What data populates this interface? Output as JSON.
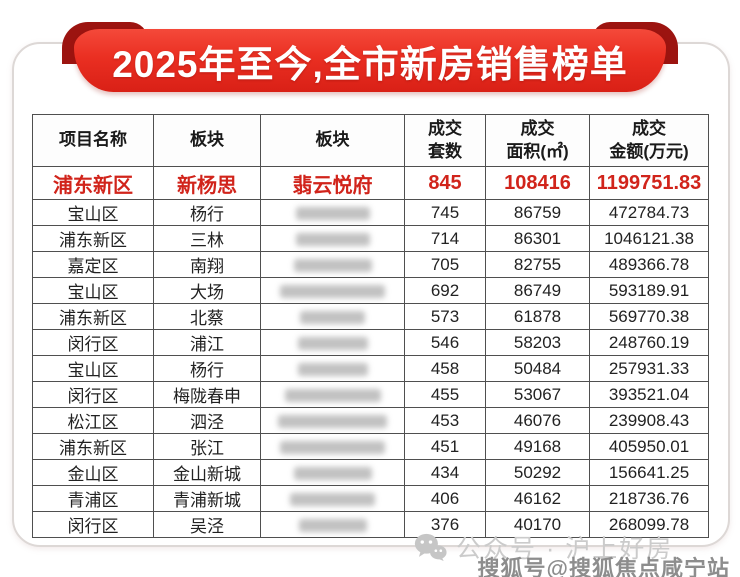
{
  "banner": {
    "title": "2025年至今,全市新房销售榜单"
  },
  "colors": {
    "banner_red": "#ea2f22",
    "banner_fold_dark_red": "#9c1410",
    "highlight_red": "#d1241b",
    "table_border": "#4f4f4f",
    "watermark_light_gray": "#cbcbcb",
    "watermark_gray": "#8d8d8d"
  },
  "table": {
    "columns": [
      {
        "line1": "项目名称",
        "line2": ""
      },
      {
        "line1": "板块",
        "line2": ""
      },
      {
        "line1": "板块",
        "line2": ""
      },
      {
        "line1": "成交",
        "line2": "套数"
      },
      {
        "line1": "成交",
        "line2": "面积(㎡)"
      },
      {
        "line1": "成交",
        "line2": "金额(万元)"
      }
    ],
    "rows": [
      {
        "district": "浦东新区",
        "block": "新杨思",
        "project": "翡云悦府",
        "project_blurred": false,
        "blur_w": 0,
        "units": "845",
        "area": "108416",
        "amount": "1199751.83",
        "highlight": true
      },
      {
        "district": "宝山区",
        "block": "杨行",
        "project": "",
        "project_blurred": true,
        "blur_w": 74,
        "units": "745",
        "area": "86759",
        "amount": "472784.73",
        "highlight": false
      },
      {
        "district": "浦东新区",
        "block": "三林",
        "project": "",
        "project_blurred": true,
        "blur_w": 74,
        "units": "714",
        "area": "86301",
        "amount": "1046121.38",
        "highlight": false
      },
      {
        "district": "嘉定区",
        "block": "南翔",
        "project": "",
        "project_blurred": true,
        "blur_w": 78,
        "units": "705",
        "area": "82755",
        "amount": "489366.78",
        "highlight": false
      },
      {
        "district": "宝山区",
        "block": "大场",
        "project": "",
        "project_blurred": true,
        "blur_w": 105,
        "units": "692",
        "area": "86749",
        "amount": "593189.91",
        "highlight": false
      },
      {
        "district": "浦东新区",
        "block": "北蔡",
        "project": "",
        "project_blurred": true,
        "blur_w": 65,
        "units": "573",
        "area": "61878",
        "amount": "569770.38",
        "highlight": false
      },
      {
        "district": "闵行区",
        "block": "浦江",
        "project": "",
        "project_blurred": true,
        "blur_w": 70,
        "units": "546",
        "area": "58203",
        "amount": "248760.19",
        "highlight": false
      },
      {
        "district": "宝山区",
        "block": "杨行",
        "project": "",
        "project_blurred": true,
        "blur_w": 70,
        "units": "458",
        "area": "50484",
        "amount": "257931.33",
        "highlight": false
      },
      {
        "district": "闵行区",
        "block": "梅陇春申",
        "project": "",
        "project_blurred": true,
        "blur_w": 96,
        "units": "455",
        "area": "53067",
        "amount": "393521.04",
        "highlight": false
      },
      {
        "district": "松江区",
        "block": "泗泾",
        "project": "",
        "project_blurred": true,
        "blur_w": 109,
        "units": "453",
        "area": "46076",
        "amount": "239908.43",
        "highlight": false
      },
      {
        "district": "浦东新区",
        "block": "张江",
        "project": "",
        "project_blurred": true,
        "blur_w": 105,
        "units": "451",
        "area": "49168",
        "amount": "405950.01",
        "highlight": false
      },
      {
        "district": "金山区",
        "block": "金山新城",
        "project": "",
        "project_blurred": true,
        "blur_w": 78,
        "units": "434",
        "area": "50292",
        "amount": "156641.25",
        "highlight": false
      },
      {
        "district": "青浦区",
        "block": "青浦新城",
        "project": "",
        "project_blurred": true,
        "blur_w": 85,
        "units": "406",
        "area": "46162",
        "amount": "218736.76",
        "highlight": false
      },
      {
        "district": "闵行区",
        "block": "吴泾",
        "project": "",
        "project_blurred": true,
        "blur_w": 68,
        "units": "376",
        "area": "40170",
        "amount": "268099.78",
        "highlight": false
      }
    ]
  },
  "watermarks": {
    "wechat_label": "公众号 · 沪上好房",
    "sohu_label": "搜狐号@搜狐焦点咸宁站"
  }
}
